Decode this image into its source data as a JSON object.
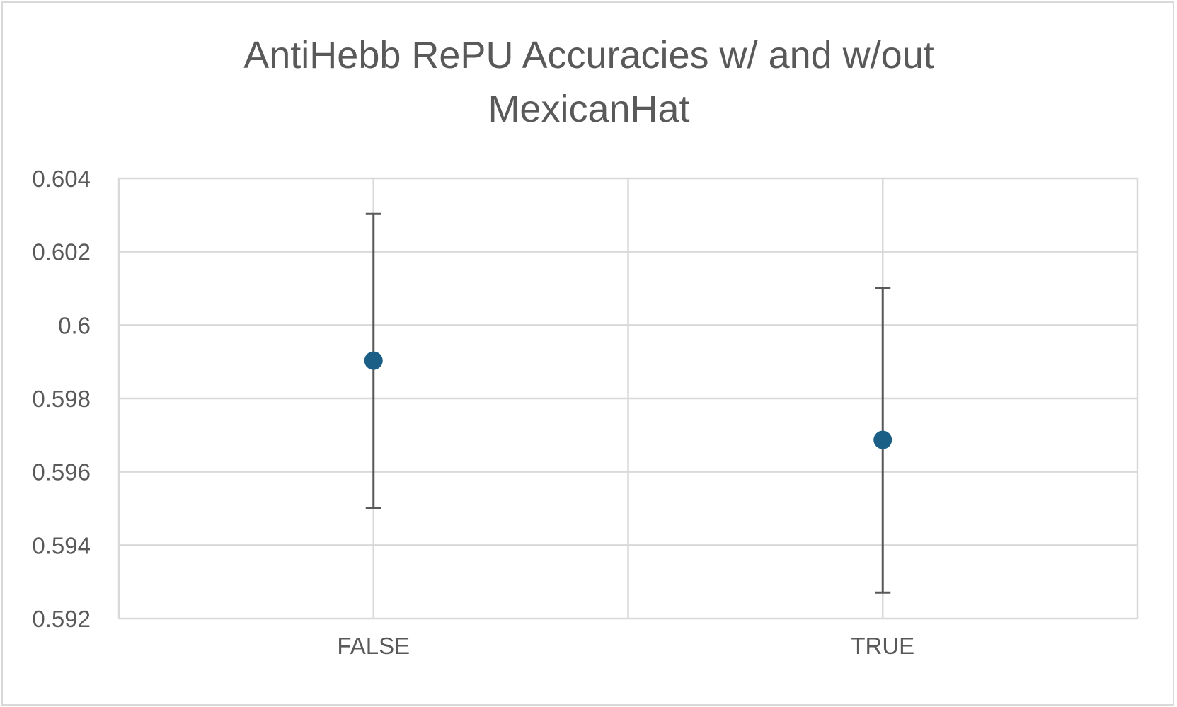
{
  "chart_data": {
    "type": "scatter",
    "title_lines": [
      "AntiHebb RePU Accuracies w/ and w/out",
      "MexicanHat"
    ],
    "xlabel": "",
    "ylabel": "",
    "categories": [
      "FALSE",
      "TRUE"
    ],
    "series": [
      {
        "values": [
          0.59903,
          0.59687
        ],
        "error_low": [
          0.59502,
          0.59271
        ],
        "error_high": [
          0.60303,
          0.60101
        ],
        "color": "#1b5f86"
      }
    ],
    "ylim": [
      0.592,
      0.604
    ],
    "yticks": [
      "0.604",
      "0.602",
      "0.6",
      "0.598",
      "0.596",
      "0.594",
      "0.592"
    ],
    "grid": true,
    "legend": "none"
  },
  "colors": {
    "marker": "#1b5f86",
    "error_bar": "#595959",
    "grid": "#d9d9d9",
    "text": "#595959"
  }
}
